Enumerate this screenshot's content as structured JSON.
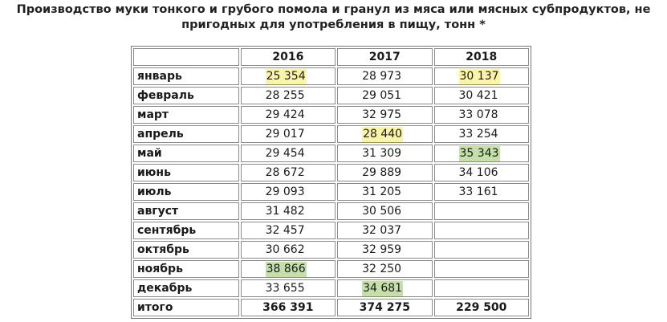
{
  "title": {
    "line1": "Производство муки тонкого и грубого помола и гранул из мяса или мясных субпродуктов, не",
    "line2": "пригодных для употребления в пищу, тонн *"
  },
  "table": {
    "corner": "",
    "years": [
      "2016",
      "2017",
      "2018"
    ],
    "rows": [
      {
        "month": "январь",
        "v2016": "25 354",
        "v2017": "28 973",
        "v2018": "30 137"
      },
      {
        "month": "февраль",
        "v2016": "28 255",
        "v2017": "29 051",
        "v2018": "30 421"
      },
      {
        "month": "март",
        "v2016": "29 424",
        "v2017": "32 975",
        "v2018": "33 078"
      },
      {
        "month": "апрель",
        "v2016": "29 017",
        "v2017": "28 440",
        "v2018": "33 254"
      },
      {
        "month": "май",
        "v2016": "29 454",
        "v2017": "31 309",
        "v2018": "35 343"
      },
      {
        "month": "июнь",
        "v2016": "28 672",
        "v2017": "29 889",
        "v2018": "34 106"
      },
      {
        "month": "июль",
        "v2016": "29 093",
        "v2017": "31 205",
        "v2018": "33 161"
      },
      {
        "month": "август",
        "v2016": "31 482",
        "v2017": "30 506",
        "v2018": ""
      },
      {
        "month": "сентябрь",
        "v2016": "32 457",
        "v2017": "32 037",
        "v2018": ""
      },
      {
        "month": "октябрь",
        "v2016": "30 662",
        "v2017": "32 959",
        "v2018": ""
      },
      {
        "month": "ноябрь",
        "v2016": "38 866",
        "v2017": "32 250",
        "v2018": ""
      },
      {
        "month": "декабрь",
        "v2016": "33 655",
        "v2017": "34 681",
        "v2018": ""
      }
    ],
    "total": {
      "label": "итого",
      "v2016": "366 391",
      "v2017": "374 275",
      "v2018": "229 500"
    }
  },
  "highlight_colors": {
    "min": "#fdf5a6",
    "max": "#c4dfa7"
  }
}
